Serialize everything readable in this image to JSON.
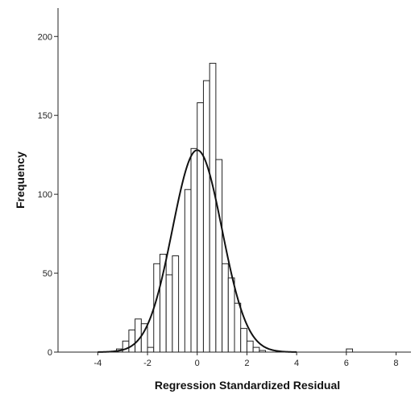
{
  "chart_data": {
    "type": "bar",
    "xlabel": "Regression Standardized Residual",
    "ylabel": "Frequency",
    "xlim": [
      -5.6,
      8.6
    ],
    "ylim": [
      0,
      218
    ],
    "xticks": [
      {
        "value": -4,
        "label": "-4"
      },
      {
        "value": -2,
        "label": "-2"
      },
      {
        "value": 0,
        "label": "0"
      },
      {
        "value": 2,
        "label": "2"
      },
      {
        "value": 4,
        "label": "4"
      },
      {
        "value": 6,
        "label": "6"
      },
      {
        "value": 8,
        "label": "8"
      }
    ],
    "yticks": [
      {
        "value": 0,
        "label": "0"
      },
      {
        "value": 50,
        "label": "50"
      },
      {
        "value": 100,
        "label": "100"
      },
      {
        "value": 150,
        "label": "150"
      },
      {
        "value": 200,
        "label": "200"
      }
    ],
    "bin_width": 0.25,
    "bins": [
      {
        "start": -3.25,
        "value": 2
      },
      {
        "start": -3.0,
        "value": 7
      },
      {
        "start": -2.75,
        "value": 14
      },
      {
        "start": -2.5,
        "value": 21
      },
      {
        "start": -2.25,
        "value": 18
      },
      {
        "start": -2.0,
        "value": 3
      },
      {
        "start": -1.75,
        "value": 56
      },
      {
        "start": -1.5,
        "value": 62
      },
      {
        "start": -1.25,
        "value": 49
      },
      {
        "start": -1.0,
        "value": 61
      },
      {
        "start": -0.75,
        "value": 0
      },
      {
        "start": -0.5,
        "value": 103
      },
      {
        "start": -0.25,
        "value": 129
      },
      {
        "start": 0.0,
        "value": 158
      },
      {
        "start": 0.25,
        "value": 172
      },
      {
        "start": 0.5,
        "value": 183
      },
      {
        "start": 0.75,
        "value": 122
      },
      {
        "start": 1.0,
        "value": 56
      },
      {
        "start": 1.25,
        "value": 47
      },
      {
        "start": 1.5,
        "value": 31
      },
      {
        "start": 1.75,
        "value": 15
      },
      {
        "start": 2.0,
        "value": 7
      },
      {
        "start": 2.25,
        "value": 3
      },
      {
        "start": 2.5,
        "value": 1
      },
      {
        "start": 6.0,
        "value": 2
      }
    ],
    "normal_curve": {
      "mean": 0,
      "sd": 1,
      "peak": 128
    },
    "grid": false,
    "legend": "none"
  }
}
